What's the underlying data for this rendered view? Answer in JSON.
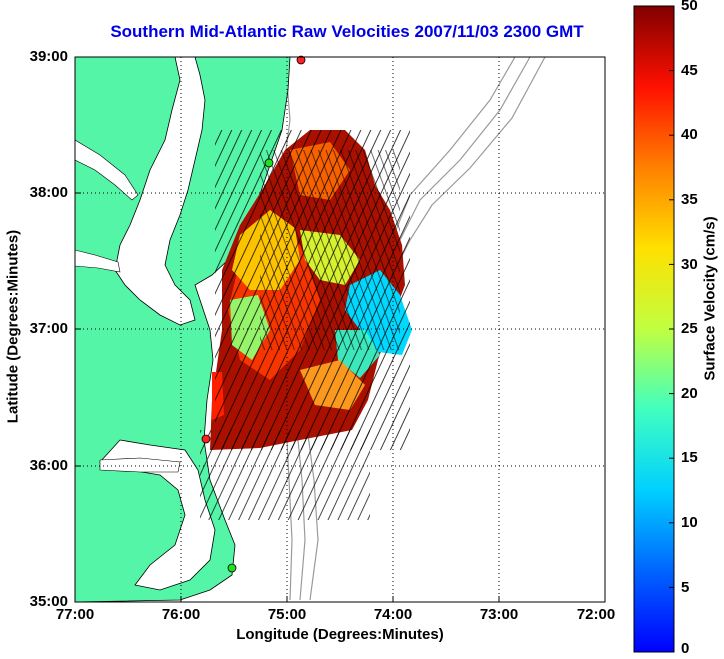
{
  "title": "Southern Mid-Atlantic Raw Velocities 2007/11/03 2300 GMT",
  "x_axis": {
    "label": "Longitude (Degrees:Minutes)",
    "ticks": [
      "77:00",
      "76:00",
      "75:00",
      "74:00",
      "73:00",
      "72:00"
    ]
  },
  "y_axis": {
    "label": "Latitude (Degrees:Minutes)",
    "ticks": [
      "39:00",
      "38:00",
      "37:00",
      "36:00",
      "35:00"
    ]
  },
  "colorbar": {
    "label": "Surface Velocity (cm/s)",
    "ticks": [
      "50",
      "45",
      "40",
      "35",
      "30",
      "25",
      "20",
      "15",
      "10",
      "5",
      "0"
    ],
    "range": [
      0,
      50
    ],
    "colormap": "jet"
  },
  "map": {
    "lon_range_west": [
      72,
      77
    ],
    "lat_range": [
      35,
      39
    ],
    "grid": true,
    "land_color": "#55f5a8",
    "ocean_color": "#ffffff",
    "bathymetry_color": "#9a9a9a"
  },
  "stations": [
    {
      "color": "#ff2020"
    },
    {
      "color": "#20e020"
    },
    {
      "color": "#ff2020"
    },
    {
      "color": "#20e020"
    }
  ]
}
